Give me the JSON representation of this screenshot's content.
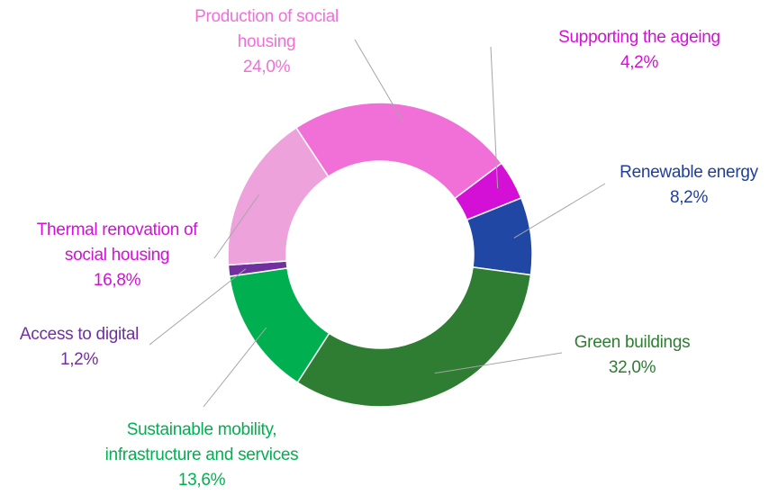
{
  "chart_data": {
    "type": "pie",
    "style": "donut",
    "slices": [
      {
        "name": "Supporting the ageing",
        "label_lines": [
          "Supporting the ageing"
        ],
        "value": 4.2,
        "value_label": "4,2%",
        "color": "#d40fd6",
        "label_color": "#d40fd6"
      },
      {
        "name": "Renewable energy",
        "label_lines": [
          "Renewable energy"
        ],
        "value": 8.2,
        "value_label": "8,2%",
        "color": "#1f47a3",
        "label_color": "#1f3f99"
      },
      {
        "name": "Green buildings",
        "label_lines": [
          "Green buildings"
        ],
        "value": 32.0,
        "value_label": "32,0%",
        "color": "#2e7d32",
        "label_color": "#2e7d32"
      },
      {
        "name": "Sustainable mobility, infrastructure and services",
        "label_lines": [
          "Sustainable mobility,",
          "infrastructure and services"
        ],
        "value": 13.6,
        "value_label": "13,6%",
        "color": "#00b050",
        "label_color": "#00b050"
      },
      {
        "name": "Access to digital",
        "label_lines": [
          "Access to digital"
        ],
        "value": 1.2,
        "value_label": "1,2%",
        "color": "#7030a0",
        "label_color": "#7030a0"
      },
      {
        "name": "Thermal renovation of social housing",
        "label_lines": [
          "Thermal renovation of",
          "social housing"
        ],
        "value": 16.8,
        "value_label": "16,8%",
        "color": "#eea2dc",
        "label_color": "#d40fd6"
      },
      {
        "name": "Production of social housing",
        "label_lines": [
          "Production of social",
          "housing"
        ],
        "value": 24.0,
        "value_label": "24,0%",
        "color": "#f070d8",
        "label_color": "#f070d8"
      }
    ]
  }
}
